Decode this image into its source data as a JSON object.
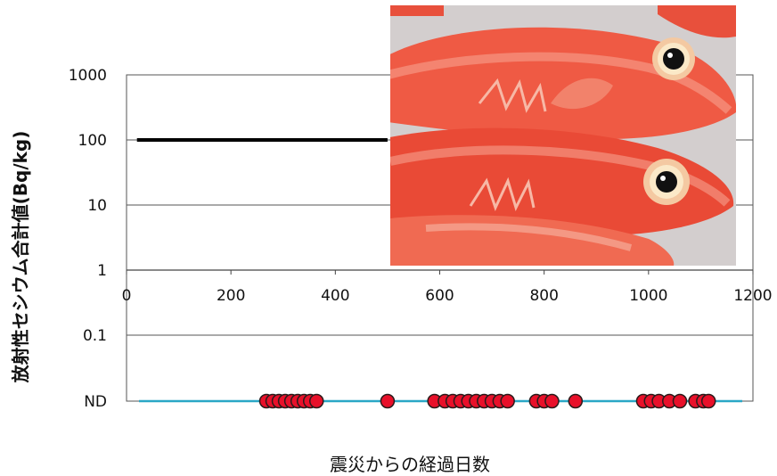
{
  "chart_data": {
    "type": "scatter",
    "xlabel": "震災からの経過日数",
    "ylabel": "放射性セシウム合計値(Bq/kg)",
    "x_ticks": [
      0,
      200,
      400,
      600,
      800,
      1000,
      1200
    ],
    "x_tick_labels": [
      "0",
      "200",
      "400",
      "600",
      "800",
      "1000",
      "1200"
    ],
    "y_scale": "log",
    "y_ticks": [
      1000,
      100,
      10,
      1,
      0.1
    ],
    "y_tick_labels": [
      "1000",
      "100",
      "10",
      "1",
      "0.1"
    ],
    "nd_label": "ND",
    "xlim": [
      0,
      1200
    ],
    "grid": true,
    "reference_line": {
      "value": 100,
      "x_start": 20,
      "x_end": 500,
      "color": "#000000"
    },
    "nd_line_color": "#2aa7c6",
    "marker_color": "#e8102a",
    "series": [
      {
        "values_on": "ND",
        "x": [
          268,
          280,
          292,
          304,
          316,
          328,
          340,
          352,
          364,
          500,
          590,
          610,
          625,
          640,
          655,
          670,
          685,
          700,
          715,
          730,
          785,
          800,
          815,
          860,
          990,
          1005,
          1020,
          1040,
          1060,
          1090,
          1105,
          1115
        ]
      }
    ]
  },
  "photo": {
    "icon": "fish-photo",
    "fish_color": "#ee4e3a"
  }
}
